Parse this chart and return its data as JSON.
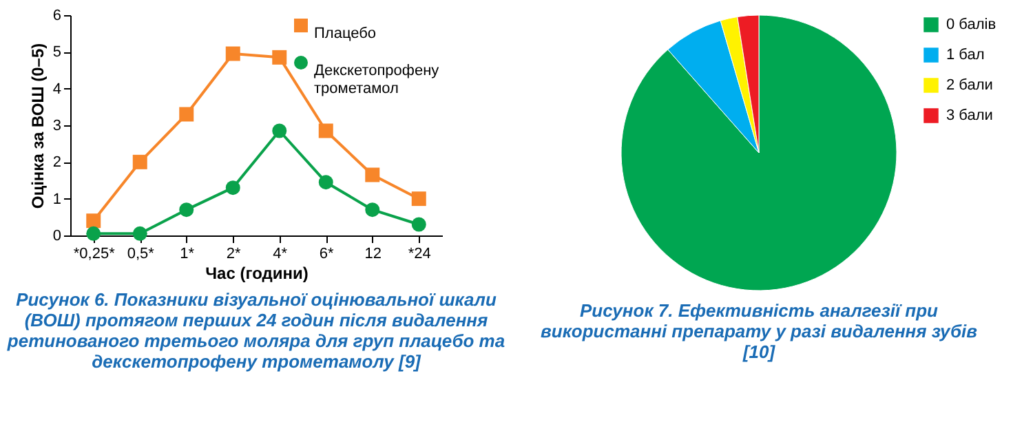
{
  "chart_data": [
    {
      "type": "line",
      "xlabel": "Час (години)",
      "ylabel": "Оцінка за ВОШ (0–5)",
      "categories": [
        "*0,25*",
        "0,5*",
        "1*",
        "2*",
        "4*",
        "6*",
        "12",
        "*24"
      ],
      "series": [
        {
          "name": "Плацебо",
          "color": "#f7862a",
          "marker": "square",
          "values": [
            0.4,
            2.0,
            3.3,
            4.95,
            4.85,
            2.85,
            1.65,
            1.0
          ]
        },
        {
          "name": "Декскетопрофену трометамол",
          "color": "#0aa24b",
          "marker": "circle",
          "values": [
            0.05,
            0.05,
            0.7,
            1.3,
            2.85,
            1.45,
            0.7,
            0.3
          ]
        }
      ],
      "ylim": [
        0,
        6
      ],
      "yticks": [
        0,
        1,
        2,
        3,
        4,
        5,
        6
      ],
      "grid": false,
      "legend": "top right",
      "line_style": "solid",
      "annotations": [
        "Рисунок 6. Показники візуальної оцінювальної шкали (ВОШ) протягом перших 24 годин після видалення ретинованого третього моляра для груп плацебо та декскетопрофену трометамолу [9]"
      ]
    },
    {
      "type": "pie",
      "categories": [
        "0 балів",
        "1 бал",
        "2 бали",
        "3 бали"
      ],
      "values": [
        88.5,
        7,
        2,
        2.5
      ],
      "colors": [
        "#00a651",
        "#00aeef",
        "#fff200",
        "#ed1c24"
      ],
      "legend": "right",
      "annotations": [
        "Рисунок 7. Ефективність аналгезії при використанні препарату у разі видалення зубів [10]"
      ]
    }
  ]
}
